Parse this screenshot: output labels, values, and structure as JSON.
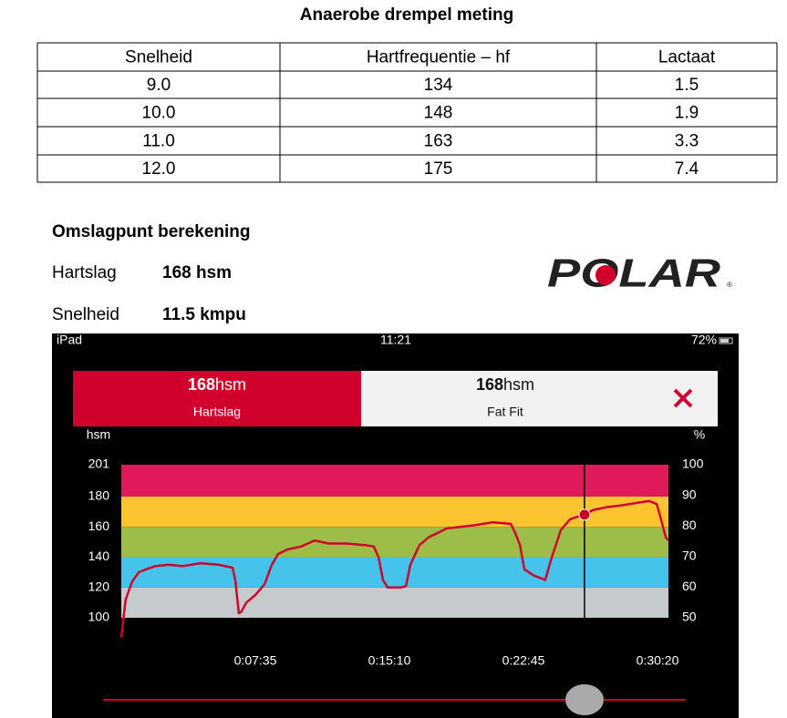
{
  "title": "Anaerobe drempel meting",
  "table": {
    "header": [
      "Snelheid",
      "Hartfrequentie – hf",
      "Lactaat"
    ],
    "rows": [
      [
        "9.0",
        "134",
        "1.5"
      ],
      [
        "10.0",
        "148",
        "1.9"
      ],
      [
        "11.0",
        "163",
        "3.3"
      ],
      [
        "12.0",
        "175",
        "7.4"
      ]
    ]
  },
  "calculation": {
    "heading": "Omslagpunt berekening",
    "items": [
      {
        "label": "Hartslag",
        "value": "168 hsm"
      },
      {
        "label": "Snelheid",
        "value": "11.5 kmpu"
      }
    ]
  },
  "logo": "POLAR",
  "screenshot": {
    "status_bar": {
      "device": "iPad",
      "time": "11:21",
      "battery": "72%"
    },
    "panels": [
      {
        "value": "168",
        "unit": "hsm",
        "label": "Hartslag"
      },
      {
        "value": "168",
        "unit": "hsm",
        "label": "Fat Fit"
      }
    ],
    "chart_data": {
      "type": "line",
      "y_axis_label": "hsm",
      "y2_axis_label": "%",
      "x": [
        0,
        15,
        37,
        59,
        84,
        115,
        161,
        208,
        269,
        331,
        378,
        387,
        399,
        408,
        424,
        455,
        486,
        511,
        532,
        563,
        610,
        656,
        703,
        764,
        826,
        857,
        873,
        888,
        904,
        950,
        966,
        981,
        1012,
        1043,
        1074,
        1105,
        1151,
        1198,
        1260,
        1322,
        1337,
        1353,
        1368,
        1399,
        1439,
        1461,
        1492,
        1523,
        1554,
        1572,
        1600,
        1647,
        1693,
        1755,
        1792,
        1817,
        1832,
        1848,
        1857
      ],
      "series": [
        {
          "color": "#d0022d",
          "values": [
            87,
            112,
            124,
            130,
            132,
            134,
            135,
            134,
            136,
            135,
            133,
            125,
            103,
            104,
            110,
            115,
            122,
            135,
            142,
            145,
            147,
            151,
            149,
            149,
            148,
            147,
            140,
            125,
            120,
            120,
            121,
            135,
            148,
            153,
            156,
            159,
            160,
            161,
            163,
            162,
            156,
            148,
            132,
            128,
            125,
            140,
            158,
            165,
            167,
            168,
            171,
            173,
            174,
            176,
            177,
            175,
            165,
            153,
            151
          ]
        }
      ],
      "xlim": [
        0,
        1857
      ],
      "xticks": [
        {
          "value": 455,
          "label": "0:07:35"
        },
        {
          "value": 910,
          "label": "0:15:10"
        },
        {
          "value": 1365,
          "label": "0:22:45"
        },
        {
          "value": 1820,
          "label": "0:30:20"
        }
      ],
      "ylim": [
        100,
        201
      ],
      "yticks": [
        100,
        120,
        140,
        160,
        180,
        201
      ],
      "y2lim": [
        50,
        100
      ],
      "y2ticks": [
        50,
        60,
        70,
        80,
        90,
        100
      ],
      "zones": [
        {
          "from": 100,
          "to": 120,
          "color": "#c5cbcc"
        },
        {
          "from": 120,
          "to": 140,
          "color": "#45c3ea"
        },
        {
          "from": 140,
          "to": 160,
          "color": "#9dbd49"
        },
        {
          "from": 160,
          "to": 180,
          "color": "#fcc52f"
        },
        {
          "from": 180,
          "to": 201,
          "color": "#e0195a"
        }
      ],
      "cursor": {
        "x": 1572,
        "value": 168
      }
    }
  }
}
